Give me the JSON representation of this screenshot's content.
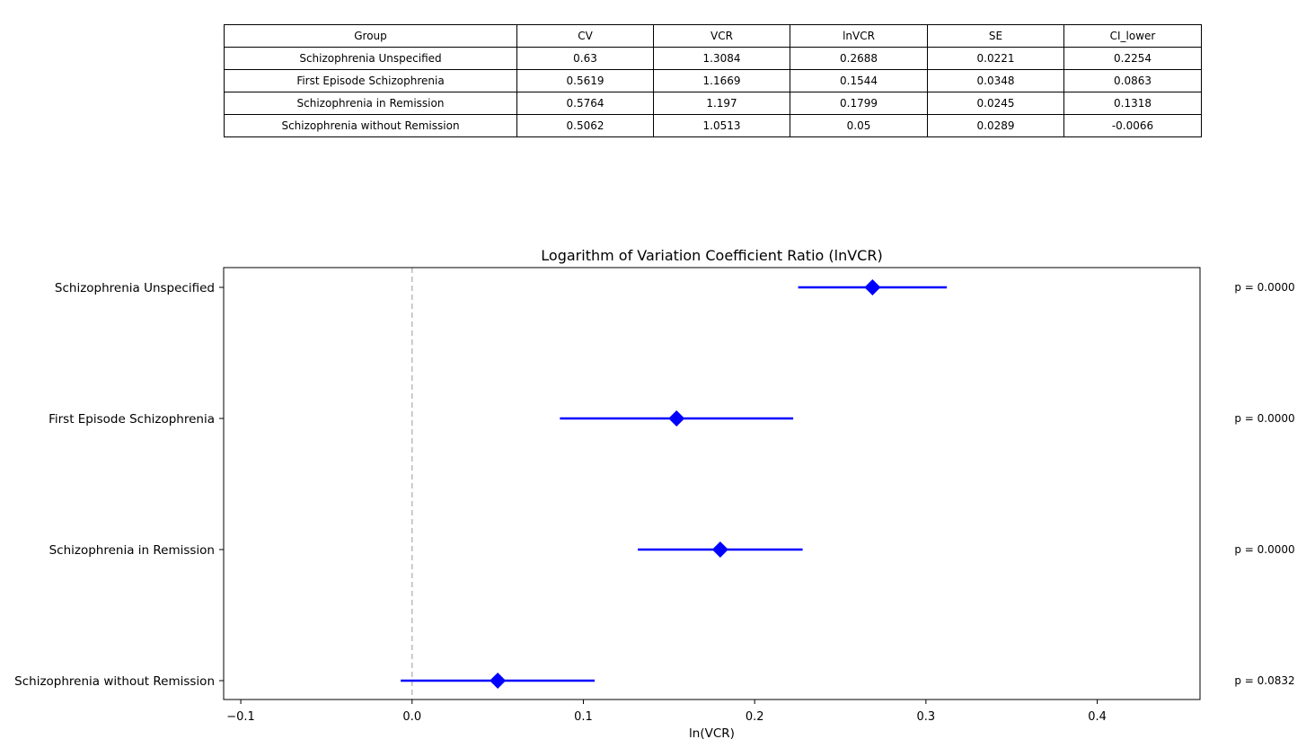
{
  "table": {
    "headers": [
      "Group",
      "CV",
      "VCR",
      "lnVCR",
      "SE",
      "CI_lower"
    ],
    "rows": [
      [
        "Schizophrenia Unspecified",
        "0.63",
        "1.3084",
        "0.2688",
        "0.0221",
        "0.2254"
      ],
      [
        "First Episode Schizophrenia",
        "0.5619",
        "1.1669",
        "0.1544",
        "0.0348",
        "0.0863"
      ],
      [
        "Schizophrenia in Remission",
        "0.5764",
        "1.197",
        "0.1799",
        "0.0245",
        "0.1318"
      ],
      [
        "Schizophrenia without Remission",
        "0.5062",
        "1.0513",
        "0.05",
        "0.0289",
        "-0.0066"
      ]
    ]
  },
  "chart_data": {
    "type": "forest",
    "title": "Logarithm of Variation Coefficient Ratio (lnVCR)",
    "xlabel": "ln(VCR)",
    "ylabel": "",
    "xlim": [
      -0.11,
      0.46
    ],
    "xticks": [
      -0.1,
      0.0,
      0.1,
      0.2,
      0.3,
      0.4
    ],
    "xtick_labels": [
      "−0.1",
      "0.0",
      "0.1",
      "0.2",
      "0.3",
      "0.4"
    ],
    "reference_line": 0.0,
    "marker_color": "#0000ff",
    "reference_color": "#bbbbbb",
    "grid": false,
    "groups": [
      {
        "label": "Schizophrenia Unspecified",
        "value": 0.2688,
        "ci_lower": 0.2254,
        "ci_upper": 0.3122,
        "p_label": "p = 0.0000"
      },
      {
        "label": "First Episode Schizophrenia",
        "value": 0.1544,
        "ci_lower": 0.0863,
        "ci_upper": 0.2225,
        "p_label": "p = 0.0000"
      },
      {
        "label": "Schizophrenia in Remission",
        "value": 0.1799,
        "ci_lower": 0.1318,
        "ci_upper": 0.228,
        "p_label": "p = 0.0000"
      },
      {
        "label": "Schizophrenia without Remission",
        "value": 0.05,
        "ci_lower": -0.0066,
        "ci_upper": 0.1066,
        "p_label": "p = 0.0832"
      }
    ]
  }
}
